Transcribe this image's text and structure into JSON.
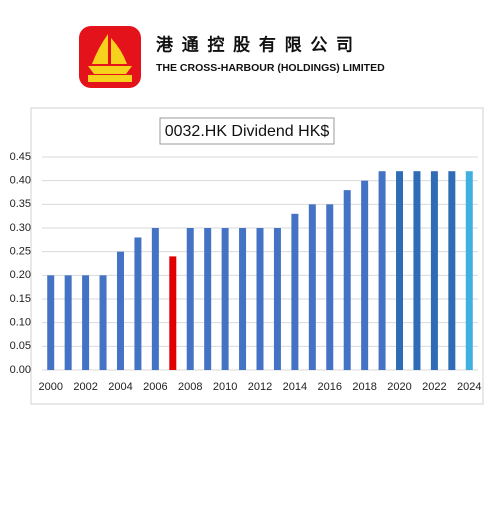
{
  "header": {
    "chinese_name": "港 通 控 股 有 限 公 司",
    "english_name": "THE CROSS-HARBOUR (HOLDINGS) LIMITED"
  },
  "chart_data": {
    "type": "bar",
    "title": "0032.HK Dividend HK$",
    "categories": [
      "2000",
      null,
      "2002",
      null,
      "2004",
      null,
      "2006",
      null,
      "2008",
      null,
      "2010",
      null,
      "2012",
      null,
      "2014",
      null,
      "2016",
      null,
      "2018",
      null,
      "2020",
      null,
      "2022",
      null,
      "2024"
    ],
    "values": [
      0.2,
      0.2,
      0.2,
      0.2,
      0.25,
      0.28,
      0.3,
      0.24,
      0.3,
      0.3,
      0.3,
      0.3,
      0.3,
      0.3,
      0.33,
      0.35,
      0.35,
      0.38,
      0.4,
      0.42,
      0.42,
      0.42,
      0.42,
      0.42,
      0.42
    ],
    "colors": [
      "#4472c4",
      "#4472c4",
      "#4472c4",
      "#4472c4",
      "#4472c4",
      "#4472c4",
      "#4472c4",
      "#e00000",
      "#4472c4",
      "#4472c4",
      "#4472c4",
      "#4472c4",
      "#4472c4",
      "#4472c4",
      "#4472c4",
      "#4472c4",
      "#4472c4",
      "#4472c4",
      "#4472c4",
      "#4472c4",
      "#2e6db5",
      "#2e6db5",
      "#2e6db5",
      "#2e6db5",
      "#3fb0e0"
    ],
    "ylim": [
      0,
      0.45
    ],
    "yticks": [
      {
        "value": 0,
        "label": "0.00"
      },
      {
        "value": 0.05,
        "label": "0.05"
      },
      {
        "value": 0.1,
        "label": "0.10"
      },
      {
        "value": 0.15,
        "label": "0.15"
      },
      {
        "value": 0.2,
        "label": "0.20"
      },
      {
        "value": 0.25,
        "label": "0.25"
      },
      {
        "value": 0.3,
        "label": "0.30"
      },
      {
        "value": 0.35,
        "label": "0.35"
      },
      {
        "value": 0.4,
        "label": "0.40"
      },
      {
        "value": 0.45,
        "label": "0.45"
      }
    ],
    "grid": true
  }
}
